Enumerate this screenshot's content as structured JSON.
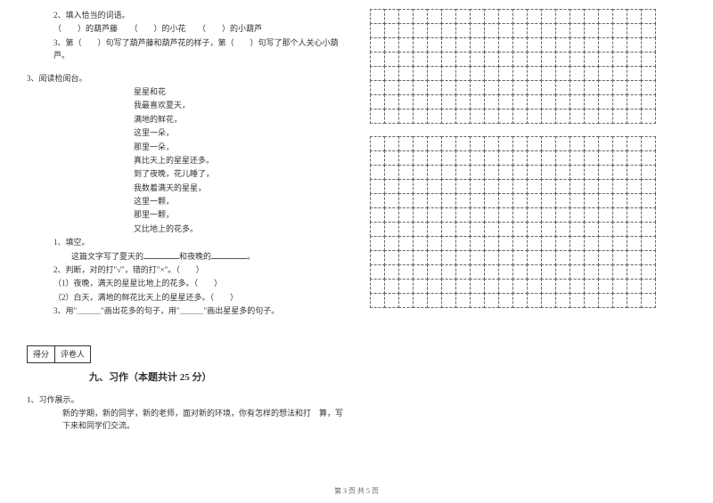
{
  "leftColumn": {
    "q2": {
      "prompt": "2、填入恰当的词语。",
      "line1": "（　　）的葫芦藤　　（　　）的小花　　（　　）的小葫芦",
      "line2": "3、第（　　）句写了葫芦藤和葫芦花的样子，第（　　）句写了那个人关心小葫芦。"
    },
    "q3": {
      "title": "3、阅读检阅台。",
      "poemTitle": "星星和花",
      "poemLines": [
        "我最喜欢夏天，",
        "满地的鲜花，",
        "这里一朵，",
        "那里一朵，",
        "真比天上的星星还多。",
        "到了夜晚，花儿睡了，",
        "我数着满天的星星，",
        "这里一颗，",
        "那里一颗，",
        "又比地上的花多。"
      ],
      "sub1": {
        "label": "1、填空。",
        "text_a": "这篇文字写了夏天的",
        "text_b": "和夜晚的",
        "text_c": "。"
      },
      "sub2": {
        "label": "2、判断，对的打\"√\"，错的打\"×\"。（　　）",
        "item1": "（1）夜晚，满天的星星比地上的花多。（　　）",
        "item2": "（2）白天，满地的鲜花比天上的星星还多。（　　）"
      },
      "sub3": "3、用\"＿＿＿\"画出花多的句子，用\"＿＿＿\"画出星星多的句子。"
    },
    "section9": {
      "scoreLabel1": "得分",
      "scoreLabel2": "评卷人",
      "title": "九、习作（本题共计 25 分）",
      "q1Label": "1、习作展示。",
      "q1Text": "新的学期，新的同学，新的老师，面对新的环境，你有怎样的想法和打　算，写下来和同学们交流。"
    }
  },
  "grid": {
    "rows1": 8,
    "rows2": 12,
    "cols": 20
  },
  "footer": "第 3 页 共 5 页",
  "colors": {
    "text": "#333333",
    "gridBorder": "#666666",
    "blankLine": "#555555",
    "background": "#ffffff"
  },
  "fonts": {
    "body": 9,
    "sectionTitle": 11,
    "footer": 8
  }
}
